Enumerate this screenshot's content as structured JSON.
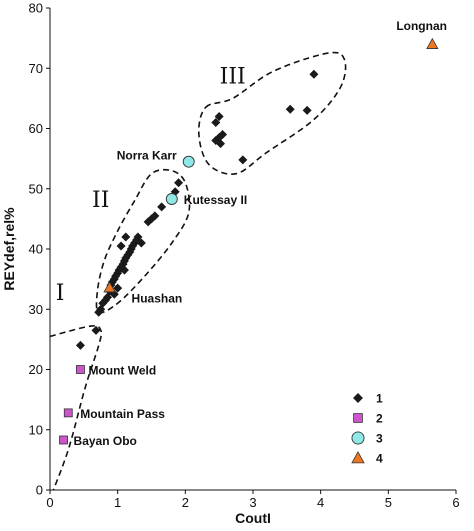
{
  "chart_data": {
    "type": "scatter",
    "xlabel": "CoutI",
    "ylabel": "REYdef,rel%",
    "xlim": [
      0,
      6
    ],
    "ylim": [
      0,
      80
    ],
    "xticks": [
      0,
      1,
      2,
      3,
      4,
      5,
      6
    ],
    "yticks": [
      0,
      10,
      20,
      30,
      40,
      50,
      60,
      70,
      80
    ],
    "grid": false,
    "legend_position": "bottom-right",
    "series": [
      {
        "name": "1",
        "marker": "diamond",
        "color": "#1a1a1a",
        "points": [
          [
            0.45,
            24.0
          ],
          [
            0.68,
            26.5
          ],
          [
            0.72,
            29.5
          ],
          [
            0.75,
            30.0
          ],
          [
            0.78,
            31.0
          ],
          [
            0.82,
            31.5
          ],
          [
            0.85,
            32.0
          ],
          [
            0.88,
            33.0
          ],
          [
            0.9,
            34.0
          ],
          [
            0.92,
            34.5
          ],
          [
            0.95,
            35.0
          ],
          [
            0.97,
            35.5
          ],
          [
            1.0,
            36.0
          ],
          [
            1.02,
            36.5
          ],
          [
            1.05,
            37.0
          ],
          [
            1.08,
            37.5
          ],
          [
            1.1,
            38.0
          ],
          [
            1.12,
            38.5
          ],
          [
            1.15,
            39.0
          ],
          [
            1.18,
            39.5
          ],
          [
            1.2,
            40.0
          ],
          [
            1.22,
            40.5
          ],
          [
            1.25,
            41.0
          ],
          [
            1.28,
            41.5
          ],
          [
            1.12,
            42.0
          ],
          [
            1.3,
            42.0
          ],
          [
            1.35,
            41.0
          ],
          [
            1.05,
            40.5
          ],
          [
            1.1,
            36.5
          ],
          [
            1.0,
            33.5
          ],
          [
            0.95,
            32.5
          ],
          [
            1.45,
            44.5
          ],
          [
            1.5,
            45.0
          ],
          [
            1.55,
            45.5
          ],
          [
            1.65,
            47.0
          ],
          [
            1.85,
            49.5
          ],
          [
            1.9,
            51.0
          ],
          [
            2.45,
            58.0
          ],
          [
            2.5,
            58.5
          ],
          [
            2.52,
            57.5
          ],
          [
            2.55,
            59.0
          ],
          [
            2.45,
            61.0
          ],
          [
            2.5,
            62.0
          ],
          [
            2.85,
            54.8
          ],
          [
            3.55,
            63.2
          ],
          [
            3.8,
            63.0
          ],
          [
            3.9,
            69.0
          ]
        ]
      },
      {
        "name": "2",
        "marker": "square",
        "color": "#cc55cc",
        "points": [
          [
            0.45,
            20.0
          ],
          [
            0.27,
            12.8
          ],
          [
            0.2,
            8.3
          ]
        ]
      },
      {
        "name": "3",
        "marker": "circle",
        "color": "#8ee8e6",
        "points": [
          [
            2.05,
            54.5
          ],
          [
            1.8,
            48.3
          ]
        ]
      },
      {
        "name": "4",
        "marker": "triangle",
        "color": "#ee7722",
        "points": [
          [
            5.65,
            74.0
          ],
          [
            0.88,
            33.6
          ]
        ]
      }
    ],
    "annotations": [
      {
        "text": "Longnan",
        "x": 5.65,
        "y": 74.0
      },
      {
        "text": "Norra Karr",
        "x": 2.05,
        "y": 54.5
      },
      {
        "text": "Kutessay II",
        "x": 1.8,
        "y": 48.3
      },
      {
        "text": "Huashan",
        "x": 0.88,
        "y": 33.6
      },
      {
        "text": "Mount Weld",
        "x": 0.45,
        "y": 20.0
      },
      {
        "text": "Mountain Pass",
        "x": 0.27,
        "y": 12.8
      },
      {
        "text": "Bayan Obo",
        "x": 0.2,
        "y": 8.3
      }
    ],
    "regions": [
      {
        "label": "I",
        "label_at": [
          0.15,
          31.5
        ],
        "outline": [
          [
            0.0,
            25.5
          ],
          [
            0.6,
            27.2
          ],
          [
            0.75,
            26.5
          ],
          [
            0.72,
            24.0
          ],
          [
            0.52,
            17.0
          ],
          [
            0.28,
            7.0
          ],
          [
            0.05,
            0.0
          ]
        ]
      },
      {
        "label": "II",
        "label_at": [
          0.75,
          47.0
        ],
        "outline": [
          [
            0.72,
            29.5
          ],
          [
            1.0,
            31.0
          ],
          [
            1.4,
            35.5
          ],
          [
            1.8,
            41.0
          ],
          [
            2.05,
            46.0
          ],
          [
            2.0,
            51.0
          ],
          [
            1.8,
            53.0
          ],
          [
            1.5,
            52.5
          ],
          [
            1.25,
            48.0
          ],
          [
            1.0,
            43.0
          ],
          [
            0.8,
            38.0
          ],
          [
            0.7,
            33.0
          ]
        ]
      },
      {
        "label": "III",
        "label_at": [
          2.7,
          67.5
        ],
        "outline": [
          [
            2.3,
            63.5
          ],
          [
            2.7,
            65.0
          ],
          [
            3.3,
            69.5
          ],
          [
            4.1,
            72.5
          ],
          [
            4.35,
            71.5
          ],
          [
            4.3,
            67.0
          ],
          [
            3.9,
            61.5
          ],
          [
            3.2,
            56.0
          ],
          [
            2.75,
            52.5
          ],
          [
            2.35,
            54.0
          ],
          [
            2.2,
            59.0
          ]
        ]
      }
    ]
  }
}
